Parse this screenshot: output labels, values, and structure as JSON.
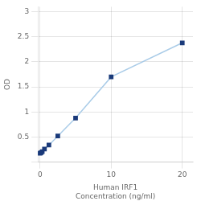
{
  "chart_data": {
    "type": "line",
    "xlabel": "Human IRF1\nConcentration (ng/ml)",
    "ylabel": "OD",
    "x": [
      0,
      0.156,
      0.313,
      0.625,
      1.25,
      2.5,
      5,
      10,
      20
    ],
    "values": [
      0.175,
      0.19,
      0.21,
      0.26,
      0.34,
      0.52,
      0.88,
      1.7,
      2.38
    ],
    "color": "#aacce8",
    "marker_color": "#1a3a7a",
    "marker": "square",
    "xlim": [
      -0.3,
      21.5
    ],
    "ylim": [
      0.0,
      3.1
    ],
    "xticks": [
      0,
      10,
      20
    ],
    "yticks": [
      {
        "value": 0,
        "label": ""
      },
      0.5,
      1,
      1.5,
      2,
      2.5,
      3
    ],
    "grid": true
  }
}
